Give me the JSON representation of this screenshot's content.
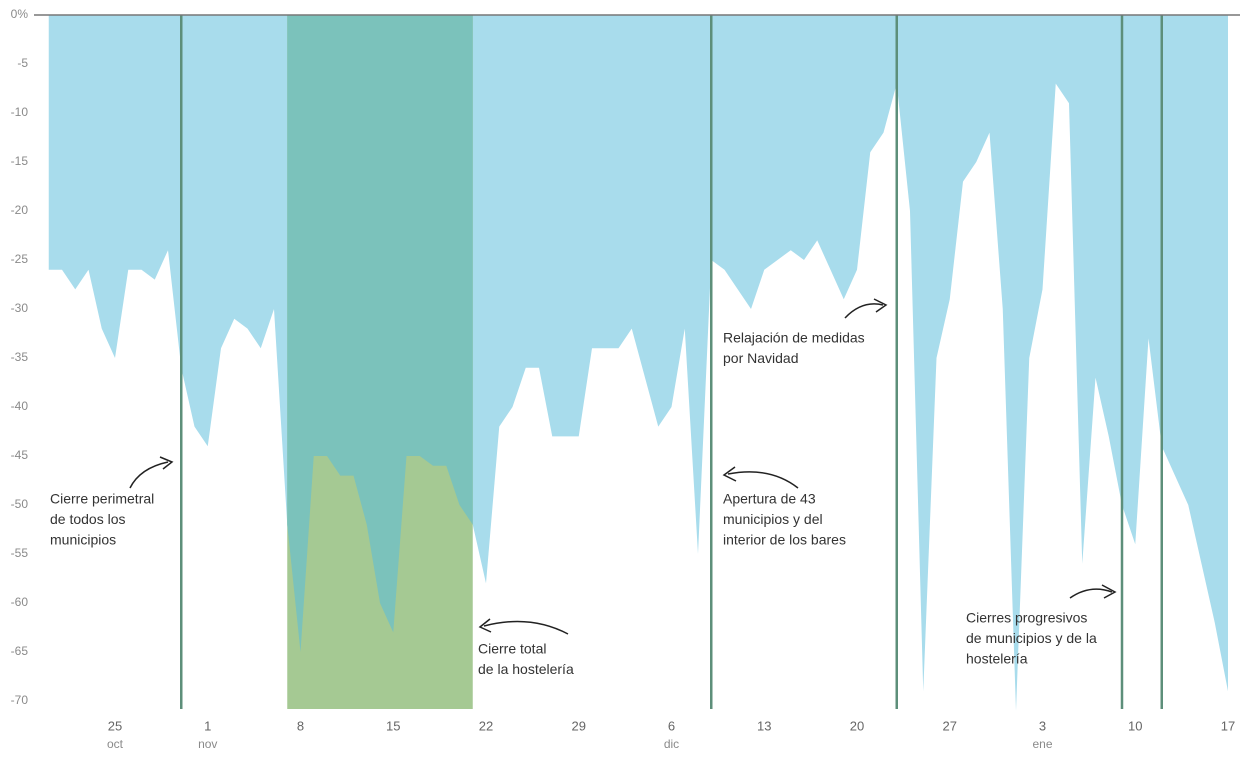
{
  "chart_data": {
    "type": "area",
    "categories": [
      null,
      null,
      null,
      null,
      null,
      "25",
      null,
      null,
      null,
      null,
      null,
      null,
      "1",
      null,
      null,
      null,
      null,
      null,
      null,
      "8",
      null,
      null,
      null,
      null,
      null,
      null,
      "15",
      null,
      null,
      null,
      null,
      null,
      null,
      "22",
      null,
      null,
      null,
      null,
      null,
      null,
      "29",
      null,
      null,
      null,
      null,
      null,
      null,
      "6",
      null,
      null,
      null,
      null,
      null,
      null,
      "13",
      null,
      null,
      null,
      null,
      null,
      null,
      "20",
      null,
      null,
      null,
      null,
      null,
      null,
      "27",
      null,
      null,
      null,
      null,
      null,
      null,
      "3",
      null,
      null,
      null,
      null,
      null,
      null,
      "10",
      null,
      null,
      null,
      null,
      null,
      null,
      "17"
    ],
    "category_sublabels": [
      null,
      null,
      null,
      null,
      null,
      "oct",
      null,
      null,
      null,
      null,
      null,
      null,
      "nov",
      null,
      null,
      null,
      null,
      null,
      null,
      null,
      null,
      null,
      null,
      null,
      null,
      null,
      null,
      null,
      null,
      null,
      null,
      null,
      null,
      null,
      null,
      null,
      null,
      null,
      null,
      null,
      null,
      null,
      null,
      null,
      null,
      null,
      null,
      "dic",
      null,
      null,
      null,
      null,
      null,
      null,
      null,
      null,
      null,
      null,
      null,
      null,
      null,
      null,
      null,
      null,
      null,
      null,
      null,
      null,
      null,
      null,
      null,
      null,
      null,
      null,
      null,
      "ene",
      null,
      null,
      null,
      null,
      null,
      null,
      null,
      null,
      null,
      null,
      null,
      null,
      null,
      null
    ],
    "values": [
      -26,
      -26,
      -28,
      -26,
      -32,
      -35,
      -26,
      -26,
      -27,
      -24,
      -36,
      -42,
      -44,
      -34,
      -31,
      -32,
      -34,
      -30,
      -52,
      -65,
      -45,
      -45,
      -47,
      -47,
      -52,
      -60,
      -63,
      -45,
      -45,
      -46,
      -46,
      -50,
      -52,
      -58,
      -42,
      -40,
      -36,
      -36,
      -43,
      -43,
      -43,
      -34,
      -34,
      -34,
      -32,
      -37,
      -42,
      -40,
      -32,
      -55,
      -25,
      -26,
      -28,
      -30,
      -26,
      -25,
      -24,
      -25,
      -23,
      -26,
      -29,
      -26,
      -14,
      -12,
      -7,
      -20,
      -69,
      -35,
      -29,
      -17,
      -15,
      -12,
      -30,
      -71,
      -35,
      -28,
      -7,
      -9,
      -56,
      -37,
      -43,
      -50,
      -54,
      -33,
      -44,
      -47,
      -50,
      -56,
      -62,
      -69
    ],
    "color": "#a8dcec",
    "band": {
      "from": 18,
      "to": 32,
      "upper_color": "#7bc2bb",
      "lower_color": "#a5c993"
    },
    "event_lines": [
      10,
      50,
      64,
      81,
      84
    ],
    "event_color": "#5d8f7a",
    "ylim": [
      -70,
      0
    ],
    "yticks": [
      {
        "value": 0,
        "label": "0%"
      },
      -5,
      -10,
      -15,
      -20,
      -25,
      -30,
      -35,
      -40,
      -45,
      -50,
      -55,
      -60,
      -65,
      -70
    ],
    "annotations": [
      {
        "lines": [
          "Cierre perimetral",
          "de todos los",
          "municipios"
        ]
      },
      {
        "lines": [
          "Cierre total",
          "de la hostelería"
        ]
      },
      {
        "lines": [
          "Relajación de medidas",
          "por Navidad"
        ]
      },
      {
        "lines": [
          "Apertura de 43",
          "municipios y del",
          "interior de los bares"
        ]
      },
      {
        "lines": [
          "Cierres progresivos",
          "de municipios y de la",
          "hostelería"
        ]
      }
    ]
  }
}
